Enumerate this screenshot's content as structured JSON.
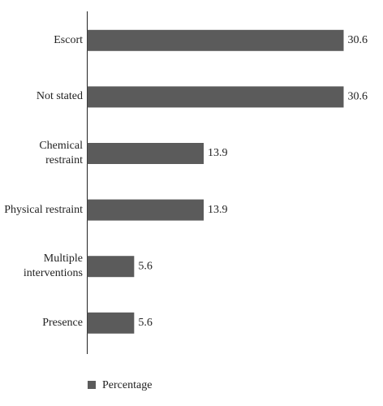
{
  "chart_data": {
    "type": "bar",
    "orientation": "horizontal",
    "categories": [
      "Escort",
      "Not stated",
      "Chemical restraint",
      "Physical restraint",
      "Multiple interventions",
      "Presence"
    ],
    "series": [
      {
        "name": "Percentage",
        "color": "#5b5b5b",
        "values": [
          30.6,
          30.6,
          13.9,
          13.9,
          5.6,
          5.6
        ]
      }
    ]
  }
}
